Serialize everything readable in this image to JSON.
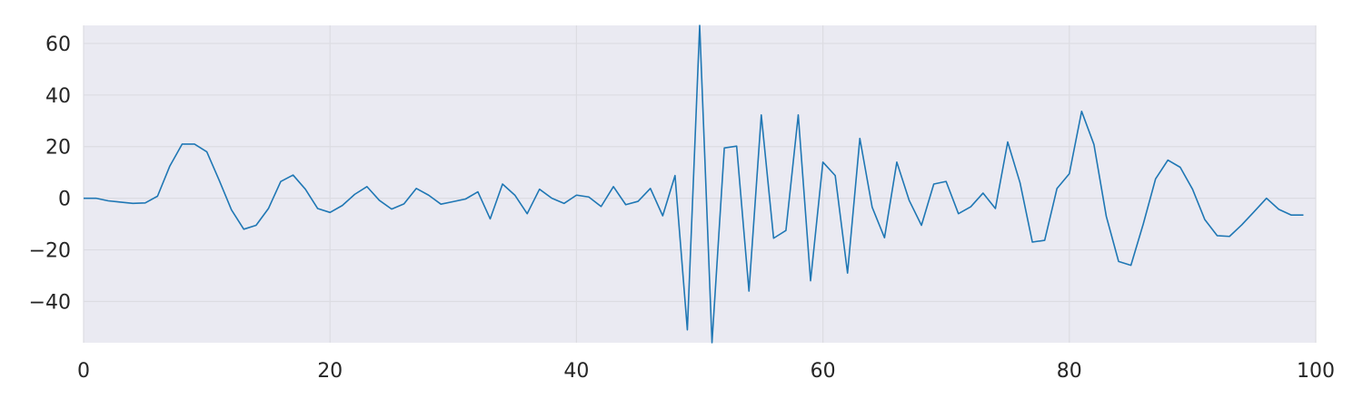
{
  "chart_data": {
    "type": "line",
    "title": "",
    "xlabel": "",
    "ylabel": "",
    "xlim": [
      0,
      100
    ],
    "ylim": [
      -56,
      67
    ],
    "grid": true,
    "x_ticks": [
      0,
      20,
      40,
      60,
      80,
      100
    ],
    "y_ticks": [
      -40,
      -20,
      0,
      20,
      40,
      60
    ],
    "x_tick_labels": [
      "0",
      "20",
      "40",
      "60",
      "80",
      "100"
    ],
    "y_tick_labels": [
      "−40",
      "−20",
      "0",
      "20",
      "40",
      "60"
    ],
    "series": [
      {
        "color": "#1f77b4",
        "x": [
          0,
          1,
          2,
          3,
          4,
          5,
          6,
          7,
          8,
          9,
          10,
          11,
          12,
          13,
          14,
          15,
          16,
          17,
          18,
          19,
          20,
          21,
          22,
          23,
          24,
          25,
          26,
          27,
          28,
          29,
          30,
          31,
          32,
          33,
          34,
          35,
          36,
          37,
          38,
          39,
          40,
          41,
          42,
          43,
          44,
          45,
          46,
          47,
          48,
          49,
          50,
          51,
          52,
          53,
          54,
          55,
          56,
          57,
          58,
          59,
          60,
          61,
          62,
          63,
          64,
          65,
          66,
          67,
          68,
          69,
          70,
          71,
          72,
          73,
          74,
          75,
          76,
          77,
          78,
          79,
          80,
          81,
          82,
          83,
          84,
          85,
          86,
          87,
          88,
          89,
          90,
          91,
          92,
          93,
          94,
          95,
          96,
          97,
          98,
          99
        ],
        "values": [
          0,
          0,
          -1,
          -1.5,
          -2,
          -1.8,
          0.8,
          12.5,
          21,
          21,
          18,
          7,
          -4.5,
          -12,
          -10.5,
          -4,
          6.5,
          9,
          3.5,
          -4,
          -5.5,
          -2.8,
          1.5,
          4.5,
          -0.8,
          -4.2,
          -2.2,
          3.8,
          1.2,
          -2.3,
          -1.3,
          -0.3,
          2.5,
          -8,
          5.5,
          1.2,
          -6,
          3.5,
          0,
          -2,
          1.2,
          0.5,
          -3.2,
          4.5,
          -2.5,
          -1.2,
          3.8,
          -6.8,
          8.8,
          -51,
          67,
          -56,
          19.5,
          20.2,
          -36,
          32.3,
          -15.5,
          -12.5,
          32.3,
          -32,
          14,
          8.8,
          -29,
          23.2,
          -3.5,
          -15.3,
          14,
          -0.8,
          -10.5,
          5.5,
          6.5,
          -6,
          -3.3,
          2,
          -4,
          21.8,
          6,
          -17,
          -16.3,
          3.8,
          9.5,
          33.7,
          20.8,
          -7,
          -24.5,
          -26,
          -10,
          7.5,
          14.8,
          12,
          3.5,
          -8.3,
          -14.5,
          -14.8,
          -10.3,
          -5.2,
          0,
          -4.3,
          -6.5,
          -6.5
        ]
      }
    ]
  }
}
